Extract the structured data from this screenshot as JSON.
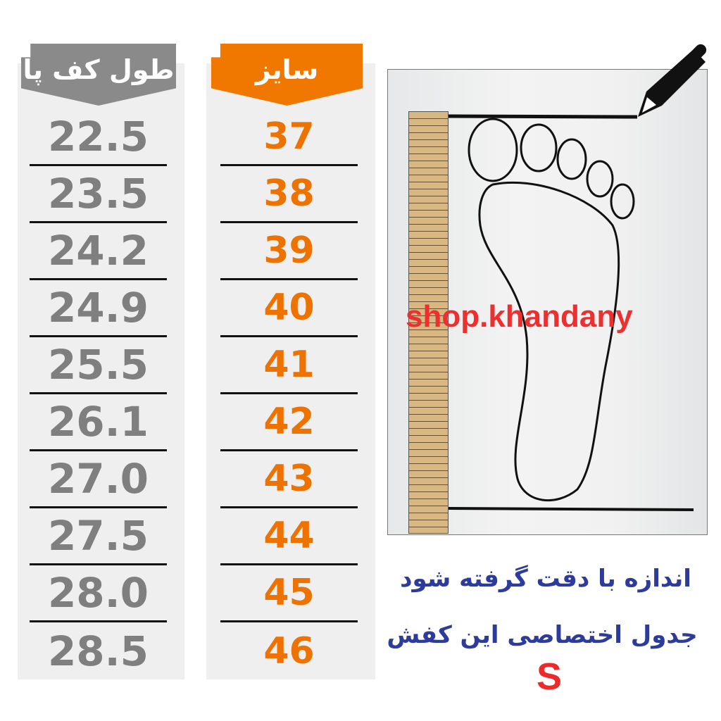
{
  "foot_length_header": "طول کف پا",
  "size_header": "سایز",
  "foot_lengths": [
    "22.5",
    "23.5",
    "24.2",
    "24.9",
    "25.5",
    "26.1",
    "27.0",
    "27.5",
    "28.0",
    "28.5"
  ],
  "sizes": [
    "37",
    "38",
    "39",
    "40",
    "41",
    "42",
    "43",
    "44",
    "45",
    "46"
  ],
  "watermark": "shop.khandany",
  "note_line1": "اندازه با دقت گرفته شود",
  "note_line2": "جدول اختصاصی این کفش",
  "size_code": "S",
  "colors": {
    "gray_header": "#8a8a8a",
    "orange": "#f07800",
    "note_blue": "#2d3c9a",
    "watermark_red": "#ec3030"
  },
  "icons": [
    "pencil-icon",
    "ruler-icon",
    "footprint-icon"
  ]
}
